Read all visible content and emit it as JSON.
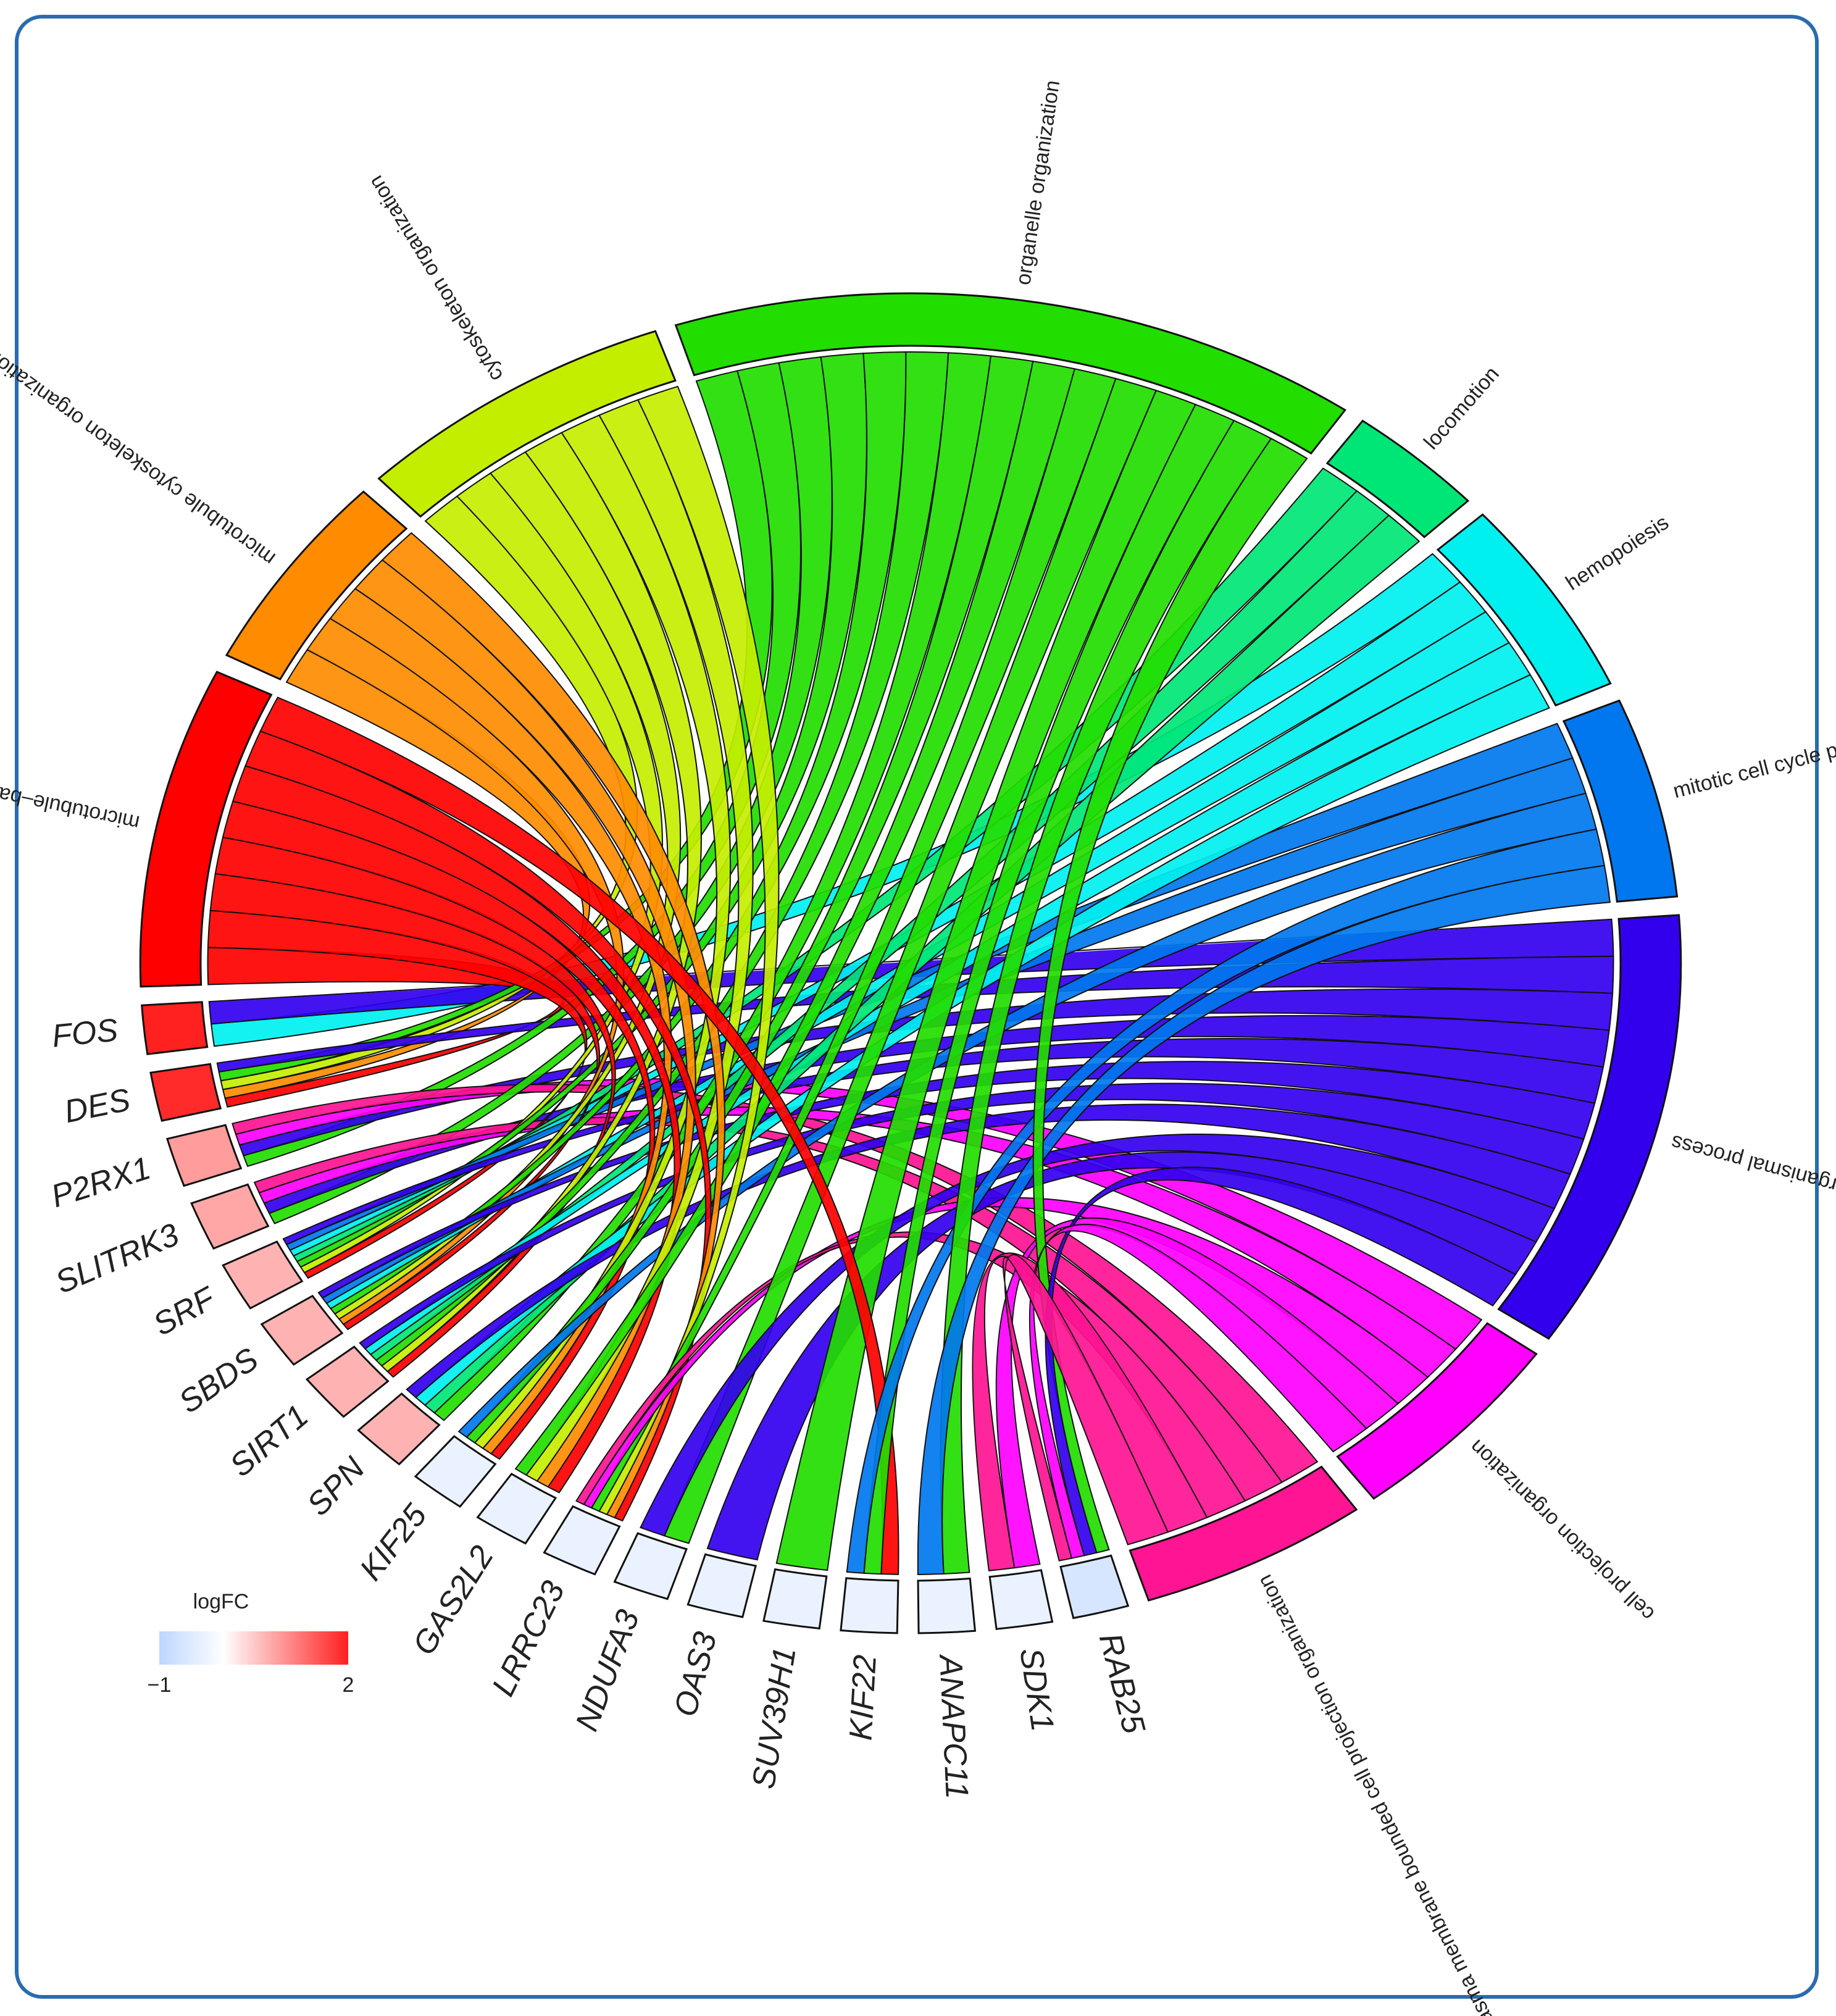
{
  "figure": {
    "frame_color": "#2a6bb0"
  },
  "genes": [
    {
      "name": "FOS",
      "logFC": 2.0
    },
    {
      "name": "DES",
      "logFC": 1.9
    },
    {
      "name": "P2RX1",
      "logFC": 0.9
    },
    {
      "name": "SLITRK3",
      "logFC": 0.8
    },
    {
      "name": "SRF",
      "logFC": 0.7
    },
    {
      "name": "SBDS",
      "logFC": 0.7
    },
    {
      "name": "SIRT1",
      "logFC": 0.7
    },
    {
      "name": "SPN",
      "logFC": 0.7
    },
    {
      "name": "KIF25",
      "logFC": -0.3
    },
    {
      "name": "GAS2L2",
      "logFC": -0.3
    },
    {
      "name": "LRRC23",
      "logFC": -0.3
    },
    {
      "name": "NDUFA3",
      "logFC": -0.3
    },
    {
      "name": "OAS3",
      "logFC": -0.3
    },
    {
      "name": "SUV39H1",
      "logFC": -0.3
    },
    {
      "name": "KIF22",
      "logFC": -0.3
    },
    {
      "name": "ANAPC11",
      "logFC": -0.3
    },
    {
      "name": "SDK1",
      "logFC": -0.3
    },
    {
      "name": "RAB25",
      "logFC": -0.6
    }
  ],
  "terms": [
    {
      "name": "microtubule–based process",
      "color": "#ff0000",
      "size": 9
    },
    {
      "name": "microtubule cytoskeleton organization",
      "color": "#ff8c00",
      "size": 7
    },
    {
      "name": "cytoskeleton organization",
      "color": "#c4ee00",
      "size": 8
    },
    {
      "name": "organelle organization",
      "color": "#22dd00",
      "size": 14
    },
    {
      "name": "locomotion",
      "color": "#00e676",
      "size": 6
    },
    {
      "name": "hemopoiesis",
      "color": "#00f0f0",
      "size": 5
    },
    {
      "name": "mitotic cell cycle process",
      "color": "#0077ee",
      "size": 5
    },
    {
      "name": "regulation of multicellular organismal process",
      "color": "#3300ee",
      "size": 9
    },
    {
      "name": "cell projection organization",
      "color": "#ff00ff",
      "size": 7
    },
    {
      "name": "plasma membrane bounded cell projection organization",
      "color": "#ff1493",
      "size": 7
    }
  ],
  "links": [
    [
      "FOS",
      5
    ],
    [
      "FOS",
      7
    ],
    [
      "DES",
      0
    ],
    [
      "DES",
      1
    ],
    [
      "DES",
      2
    ],
    [
      "DES",
      3
    ],
    [
      "DES",
      7
    ],
    [
      "P2RX1",
      3
    ],
    [
      "P2RX1",
      7
    ],
    [
      "P2RX1",
      8
    ],
    [
      "P2RX1",
      9
    ],
    [
      "SLITRK3",
      3
    ],
    [
      "SLITRK3",
      7
    ],
    [
      "SLITRK3",
      8
    ],
    [
      "SLITRK3",
      9
    ],
    [
      "SRF",
      0
    ],
    [
      "SRF",
      2
    ],
    [
      "SRF",
      3
    ],
    [
      "SRF",
      4
    ],
    [
      "SRF",
      5
    ],
    [
      "SRF",
      6
    ],
    [
      "SRF",
      7
    ],
    [
      "SBDS",
      0
    ],
    [
      "SBDS",
      1
    ],
    [
      "SBDS",
      2
    ],
    [
      "SBDS",
      3
    ],
    [
      "SBDS",
      5
    ],
    [
      "SBDS",
      6
    ],
    [
      "SBDS",
      7
    ],
    [
      "SIRT1",
      0
    ],
    [
      "SIRT1",
      2
    ],
    [
      "SIRT1",
      3
    ],
    [
      "SIRT1",
      4
    ],
    [
      "SIRT1",
      5
    ],
    [
      "SIRT1",
      7
    ],
    [
      "SPN",
      3
    ],
    [
      "SPN",
      4
    ],
    [
      "SPN",
      5
    ],
    [
      "SPN",
      7
    ],
    [
      "KIF25",
      0
    ],
    [
      "KIF25",
      1
    ],
    [
      "KIF25",
      2
    ],
    [
      "KIF25",
      3
    ],
    [
      "KIF25",
      6
    ],
    [
      "GAS2L2",
      0
    ],
    [
      "GAS2L2",
      1
    ],
    [
      "GAS2L2",
      2
    ],
    [
      "GAS2L2",
      3
    ],
    [
      "LRRC23",
      0
    ],
    [
      "LRRC23",
      1
    ],
    [
      "LRRC23",
      2
    ],
    [
      "LRRC23",
      3
    ],
    [
      "LRRC23",
      8
    ],
    [
      "LRRC23",
      9
    ],
    [
      "NDUFA3",
      3
    ],
    [
      "NDUFA3",
      7
    ],
    [
      "OAS3",
      7
    ],
    [
      "SUV39H1",
      3
    ],
    [
      "KIF22",
      0
    ],
    [
      "KIF22",
      3
    ],
    [
      "KIF22",
      6
    ],
    [
      "ANAPC11",
      3
    ],
    [
      "ANAPC11",
      6
    ],
    [
      "SDK1",
      8
    ],
    [
      "SDK1",
      9
    ],
    [
      "RAB25",
      3
    ],
    [
      "RAB25",
      7
    ],
    [
      "RAB25",
      8
    ],
    [
      "RAB25",
      9
    ]
  ],
  "legend": {
    "title": "logFC",
    "min_label": "−1",
    "max_label": "2",
    "min": -1,
    "max": 2,
    "colors": [
      "#bcd6ff",
      "#ffffff",
      "#ff2020"
    ]
  }
}
